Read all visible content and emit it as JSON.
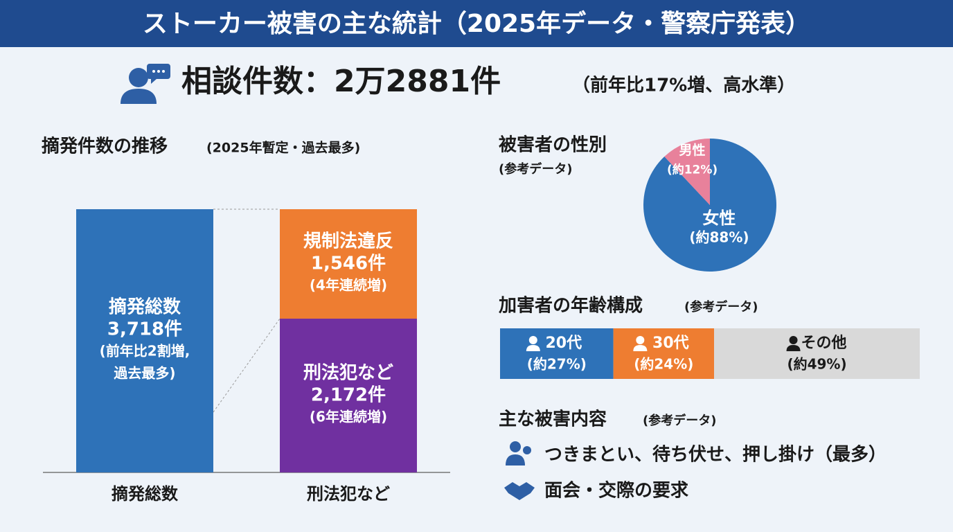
{
  "header": {
    "title": "ストーカー被害の主な統計（2025年データ・警察庁発表）"
  },
  "consultation": {
    "label": "相談件数：2万2881件",
    "note": "（前年比17%増、高水準）"
  },
  "chart_data": [
    {
      "type": "bar",
      "stacked": true,
      "orientation": "vertical",
      "title": "摘発件数の推移",
      "subtitle": "(2025年暫定・過去最多)",
      "categories": [
        "摘発総数",
        "刑法犯など"
      ],
      "ylim": [
        0,
        3718
      ],
      "series": [
        {
          "name": "摘発総数",
          "color": "#2e72b8",
          "values": [
            3718,
            null
          ],
          "value_labels": [
            "3,718件",
            null
          ],
          "notes": [
            "(前年比2割増,",
            "過去最多)"
          ]
        },
        {
          "name": "刑法犯など",
          "color": "#7030a0",
          "values": [
            null,
            2172
          ],
          "value_labels": [
            null,
            "2,172件"
          ],
          "notes": [
            "(6年連続増)"
          ]
        },
        {
          "name": "規制法違反",
          "color": "#ee7d31",
          "values": [
            null,
            1546
          ],
          "value_labels": [
            null,
            "1,546件"
          ],
          "notes": [
            "(4年連続増)"
          ]
        }
      ]
    },
    {
      "type": "pie",
      "title": "被害者の性別",
      "subtitle": "(参考データ)",
      "categories": [
        "女性",
        "男性"
      ],
      "values": [
        88,
        12
      ],
      "value_labels": [
        "(約88%)",
        "(約12%)"
      ],
      "colors": [
        "#2e72b8",
        "#e8819b"
      ]
    },
    {
      "type": "bar",
      "stacked": true,
      "orientation": "horizontal",
      "title": "加害者の年齢構成",
      "subtitle": "(参考データ)",
      "xlim": [
        0,
        100
      ],
      "series": [
        {
          "name": "20代",
          "color": "#2e72b8",
          "values": [
            27
          ],
          "value_labels": [
            "(約27%)"
          ]
        },
        {
          "name": "30代",
          "color": "#ee7d31",
          "values": [
            24
          ],
          "value_labels": [
            "(約24%)"
          ]
        },
        {
          "name": "その他",
          "color": "#d9d9d9",
          "values": [
            49
          ],
          "value_labels": [
            "(約49%)"
          ]
        }
      ]
    }
  ],
  "damage": {
    "title": "主な被害内容",
    "subtitle": "(参考データ)",
    "items": [
      "つきまとい、待ち伏せ、押し掛け（最多）",
      "面会・交際の要求"
    ]
  }
}
